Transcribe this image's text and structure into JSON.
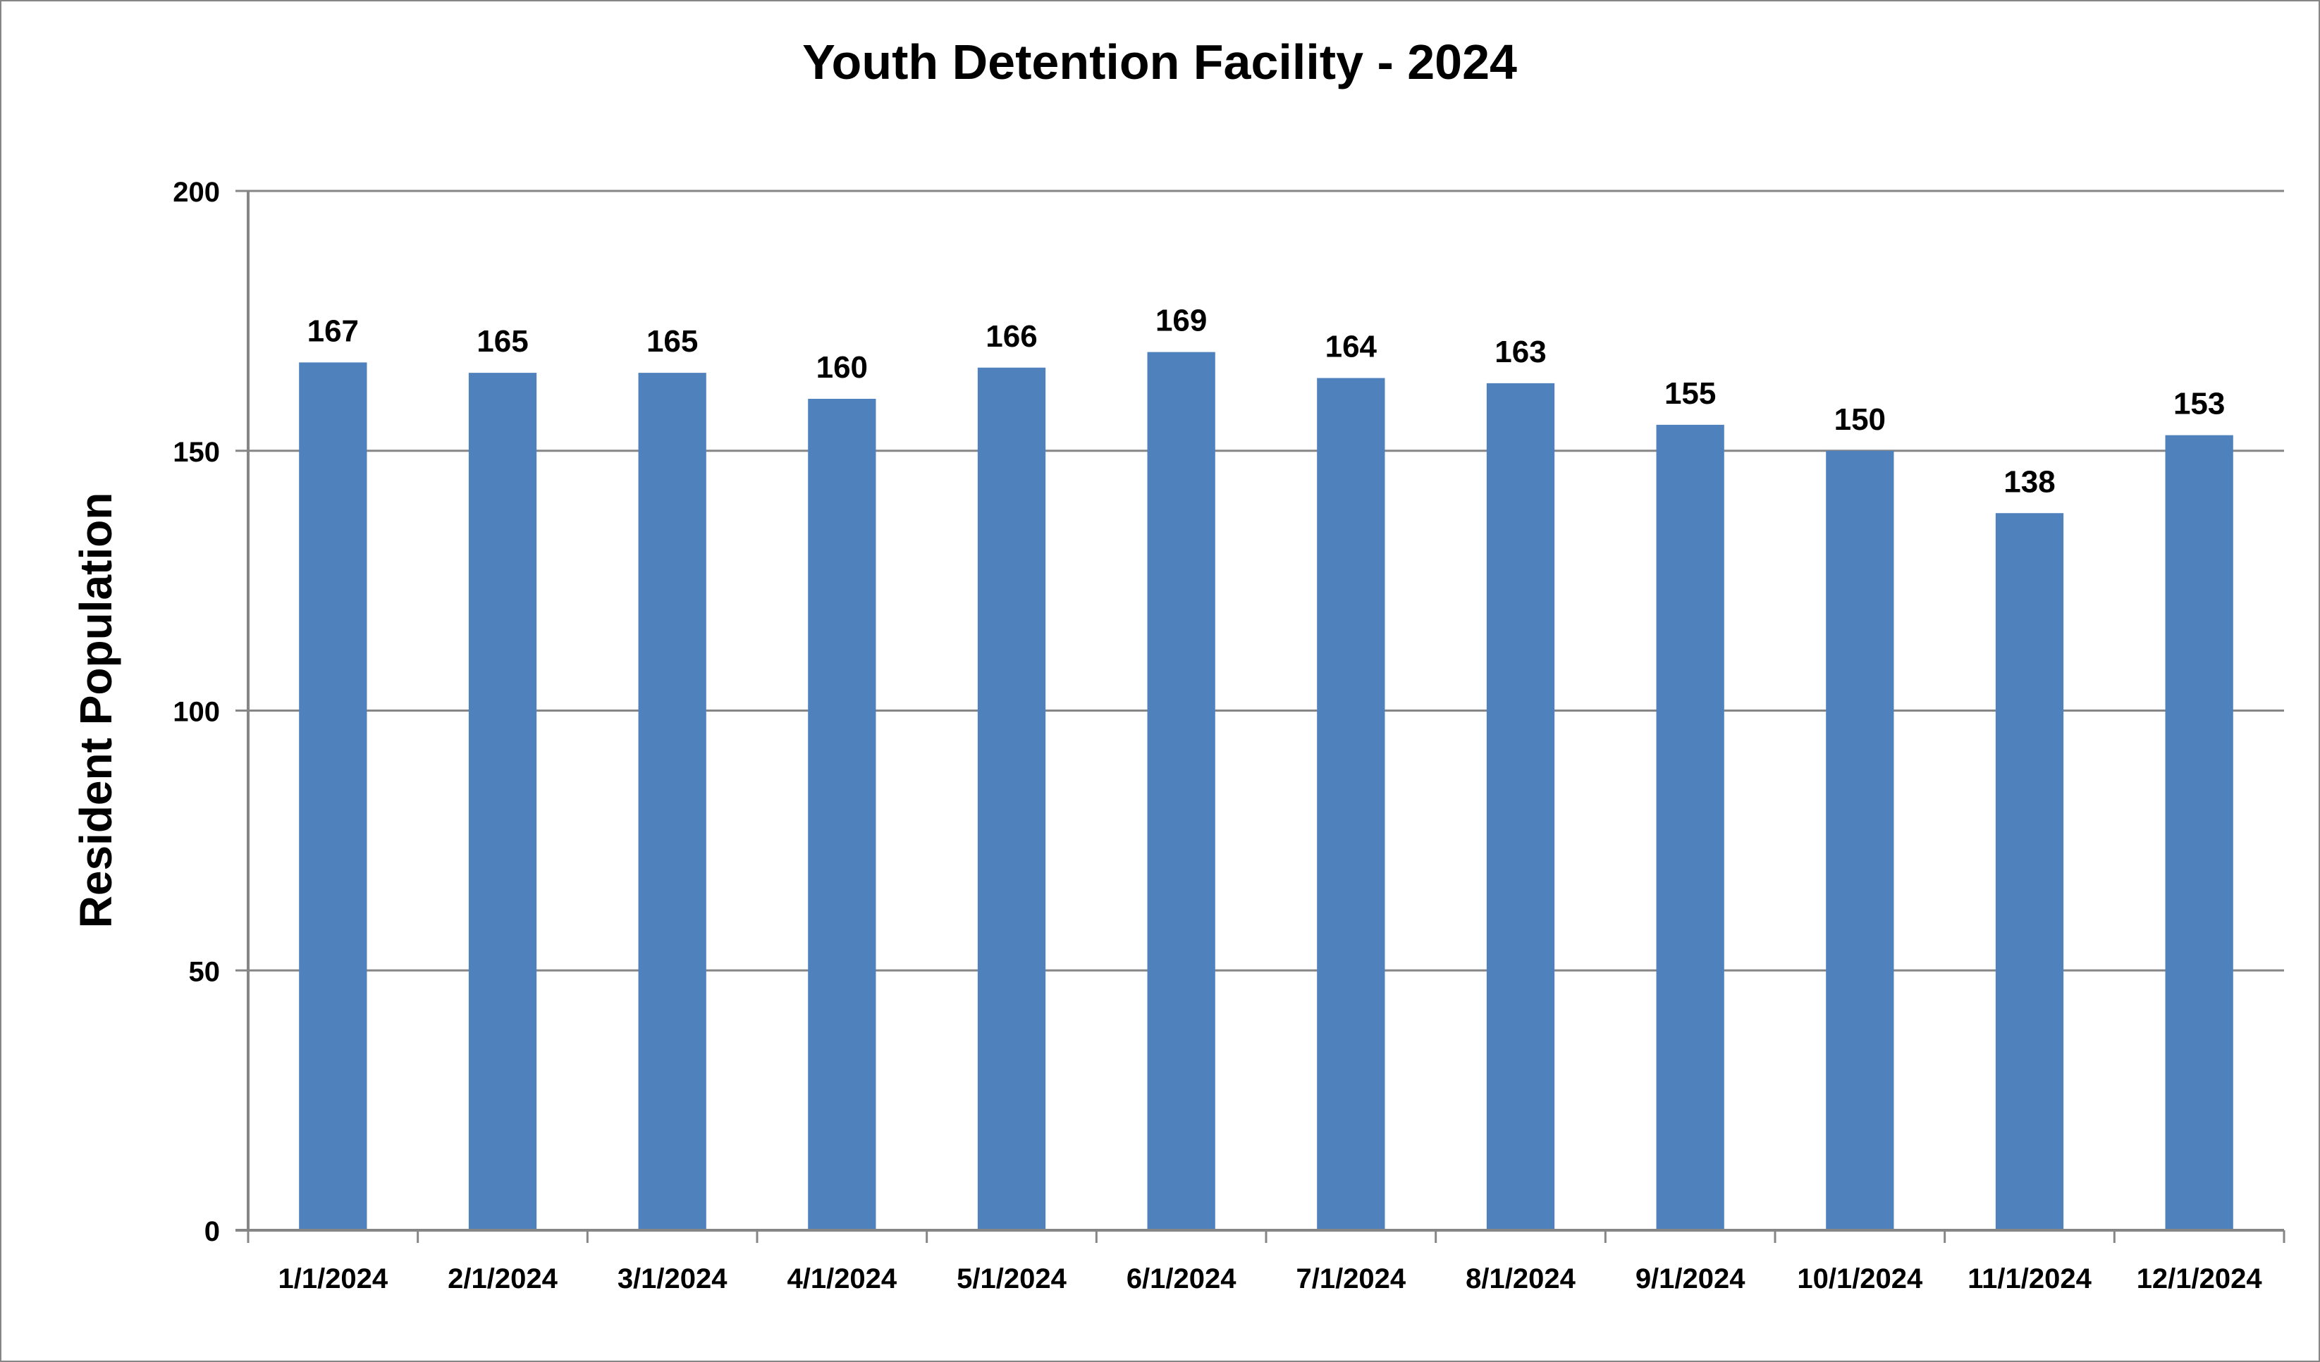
{
  "chart_data": {
    "type": "bar",
    "title": "Youth Detention Facility - 2024",
    "xlabel": "",
    "ylabel": "Resident Population",
    "categories": [
      "1/1/2024",
      "2/1/2024",
      "3/1/2024",
      "4/1/2024",
      "5/1/2024",
      "6/1/2024",
      "7/1/2024",
      "8/1/2024",
      "9/1/2024",
      "10/1/2024",
      "11/1/2024",
      "12/1/2024"
    ],
    "values": [
      167,
      165,
      165,
      160,
      166,
      169,
      164,
      163,
      155,
      150,
      138,
      153
    ],
    "ylim": [
      0,
      200
    ],
    "yticks": [
      0,
      50,
      100,
      150,
      200
    ],
    "grid": true,
    "legend": "none",
    "data_labels": true,
    "colors": {
      "bar": "#4F81BD",
      "grid": "#868686",
      "axis": "#868686"
    }
  }
}
